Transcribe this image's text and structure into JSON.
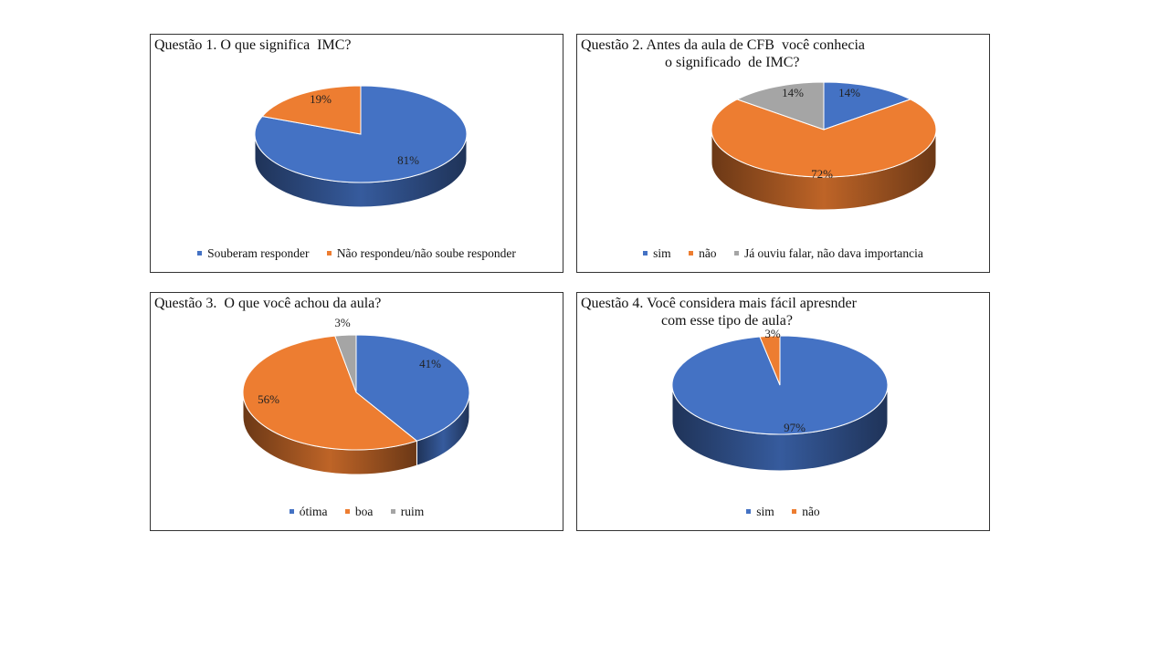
{
  "colors": {
    "blue": "#4472C4",
    "orange": "#ED7D31",
    "gray": "#A5A5A5"
  },
  "chart_data": [
    {
      "type": "pie",
      "title_lines": [
        "Questão 1. O que significa  IMC?"
      ],
      "categories": [
        "Souberam responder",
        "Não respondeu/não soube responder"
      ],
      "values": [
        81,
        19
      ],
      "labels": [
        "81%",
        "19%"
      ],
      "colors": [
        "#4472C4",
        "#ED7D31"
      ],
      "legend": "bottom"
    },
    {
      "type": "pie",
      "title_lines": [
        "Questão 2. Antes da aula de CFB  você conhecia",
        "o significado  de IMC?"
      ],
      "categories": [
        "sim",
        "não",
        "Já ouviu falar, não dava importancia"
      ],
      "values": [
        14,
        72,
        14
      ],
      "labels": [
        "14%",
        "72%",
        "14%"
      ],
      "colors": [
        "#4472C4",
        "#ED7D31",
        "#A5A5A5"
      ],
      "legend": "bottom"
    },
    {
      "type": "pie",
      "title_lines": [
        "Questão 3.  O que você achou da aula?"
      ],
      "categories": [
        "ótima",
        "boa",
        "ruim"
      ],
      "values": [
        41,
        56,
        3
      ],
      "labels": [
        "41%",
        "56%",
        "3%"
      ],
      "colors": [
        "#4472C4",
        "#ED7D31",
        "#A5A5A5"
      ],
      "legend": "bottom"
    },
    {
      "type": "pie",
      "title_lines": [
        "Questão 4. Você considera mais fácil apresnder",
        "com esse tipo de aula?"
      ],
      "categories": [
        "sim",
        "não"
      ],
      "values": [
        97,
        3
      ],
      "labels": [
        "97%",
        "3%"
      ],
      "colors": [
        "#4472C4",
        "#ED7D31"
      ],
      "legend": "bottom"
    }
  ]
}
